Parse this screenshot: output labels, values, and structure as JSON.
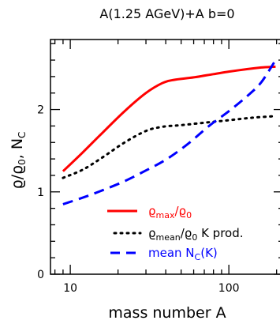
{
  "chart_data": {
    "type": "line",
    "title": "A(1.25 AGeV)+A b=0",
    "xlabel": "mass number A",
    "ylabel": {
      "rho": "ϱ",
      "slash": "/",
      "rho0": "ϱ",
      "sub0": "0",
      "comma": ", N",
      "subC": "C"
    },
    "xscale": "log",
    "xlim": [
      7.5,
      220
    ],
    "ylim": [
      0,
      2.85
    ],
    "xticks": [
      {
        "value": 10,
        "label": "10"
      },
      {
        "value": 100,
        "label": "100"
      }
    ],
    "yticks": [
      {
        "value": 0,
        "label": "0"
      },
      {
        "value": 1,
        "label": "1"
      },
      {
        "value": 2,
        "label": "2"
      }
    ],
    "series": [
      {
        "key": "rho_max",
        "color": "#ff0000",
        "dash": "solid",
        "legend": {
          "main": "ϱ",
          "sub1": "max",
          "mid": "/ϱ",
          "sub2": "0",
          "tail": ""
        },
        "x": [
          9,
          12,
          16,
          22,
          30,
          38,
          45,
          60,
          80,
          100,
          130,
          160,
          197
        ],
        "y": [
          1.25,
          1.48,
          1.72,
          1.98,
          2.2,
          2.32,
          2.36,
          2.39,
          2.43,
          2.46,
          2.49,
          2.51,
          2.52
        ]
      },
      {
        "key": "rho_mean",
        "color": "#000000",
        "dash": "dotted",
        "legend": {
          "main": "ϱ",
          "sub1": "mean",
          "mid": "/ϱ",
          "sub2": "0",
          "tail": " K prod."
        },
        "x": [
          9,
          12,
          16,
          22,
          30,
          38,
          50,
          70,
          100,
          140,
          197
        ],
        "y": [
          1.17,
          1.27,
          1.42,
          1.6,
          1.74,
          1.79,
          1.81,
          1.84,
          1.87,
          1.9,
          1.92
        ]
      },
      {
        "key": "mean_nc",
        "color": "#0000ff",
        "dash": "dashed",
        "legend": {
          "main": "mean N",
          "sub1": "C",
          "mid": "(K)",
          "sub2": "",
          "tail": ""
        },
        "x": [
          9,
          12,
          16,
          22,
          30,
          40,
          55,
          75,
          100,
          130,
          160,
          197
        ],
        "y": [
          0.85,
          0.93,
          1.02,
          1.13,
          1.26,
          1.39,
          1.58,
          1.8,
          1.98,
          2.16,
          2.33,
          2.6
        ]
      }
    ]
  }
}
